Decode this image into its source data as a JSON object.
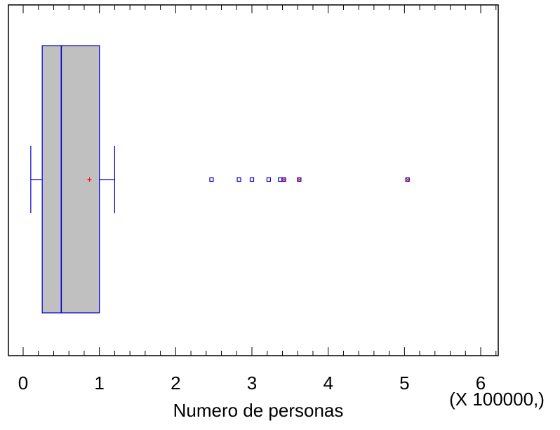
{
  "chart_data": {
    "type": "box",
    "orientation": "horizontal",
    "xlabel": "Numero de personas",
    "x_multiplier_label": "(X 100000,)",
    "xlim": [
      -0.2,
      6.2
    ],
    "x_ticks": [
      0,
      1,
      2,
      3,
      4,
      5,
      6
    ],
    "x_tick_labels": [
      "0",
      "1",
      "2",
      "3",
      "4",
      "5",
      "6"
    ],
    "grid": false,
    "box": {
      "whisker_low": 0.1,
      "q1": 0.25,
      "median": 0.5,
      "mean": 0.87,
      "q3": 1.0,
      "whisker_high": 1.2
    },
    "outliers": [
      2.47,
      2.83,
      3.0,
      3.22,
      3.37,
      3.42,
      3.62,
      5.04
    ],
    "far_outliers": [
      3.42,
      3.62,
      5.04
    ],
    "colors": {
      "box_fill": "#c0c0c0",
      "box_stroke": "#0000cc",
      "mean_marker": "#ff0000",
      "outlier": "#0000cc",
      "far_outlier": "#ff0000",
      "axis": "#000000"
    }
  }
}
